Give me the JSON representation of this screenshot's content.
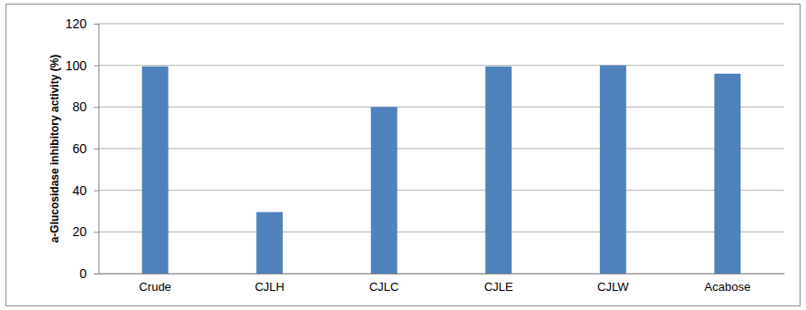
{
  "chart_data": {
    "type": "bar",
    "y_label": "a-Glucosidase inhibitory activity (%)",
    "categories": [
      "Crude",
      "CJLH",
      "CJLC",
      "CJLE",
      "CJLW",
      "Acabose"
    ],
    "values": [
      99.5,
      29.5,
      80,
      99.5,
      100,
      96
    ],
    "color": "#4f81bd",
    "ylim": [
      0,
      120
    ],
    "yticks": [
      0,
      20,
      40,
      60,
      80,
      100,
      120
    ],
    "grid": true
  }
}
